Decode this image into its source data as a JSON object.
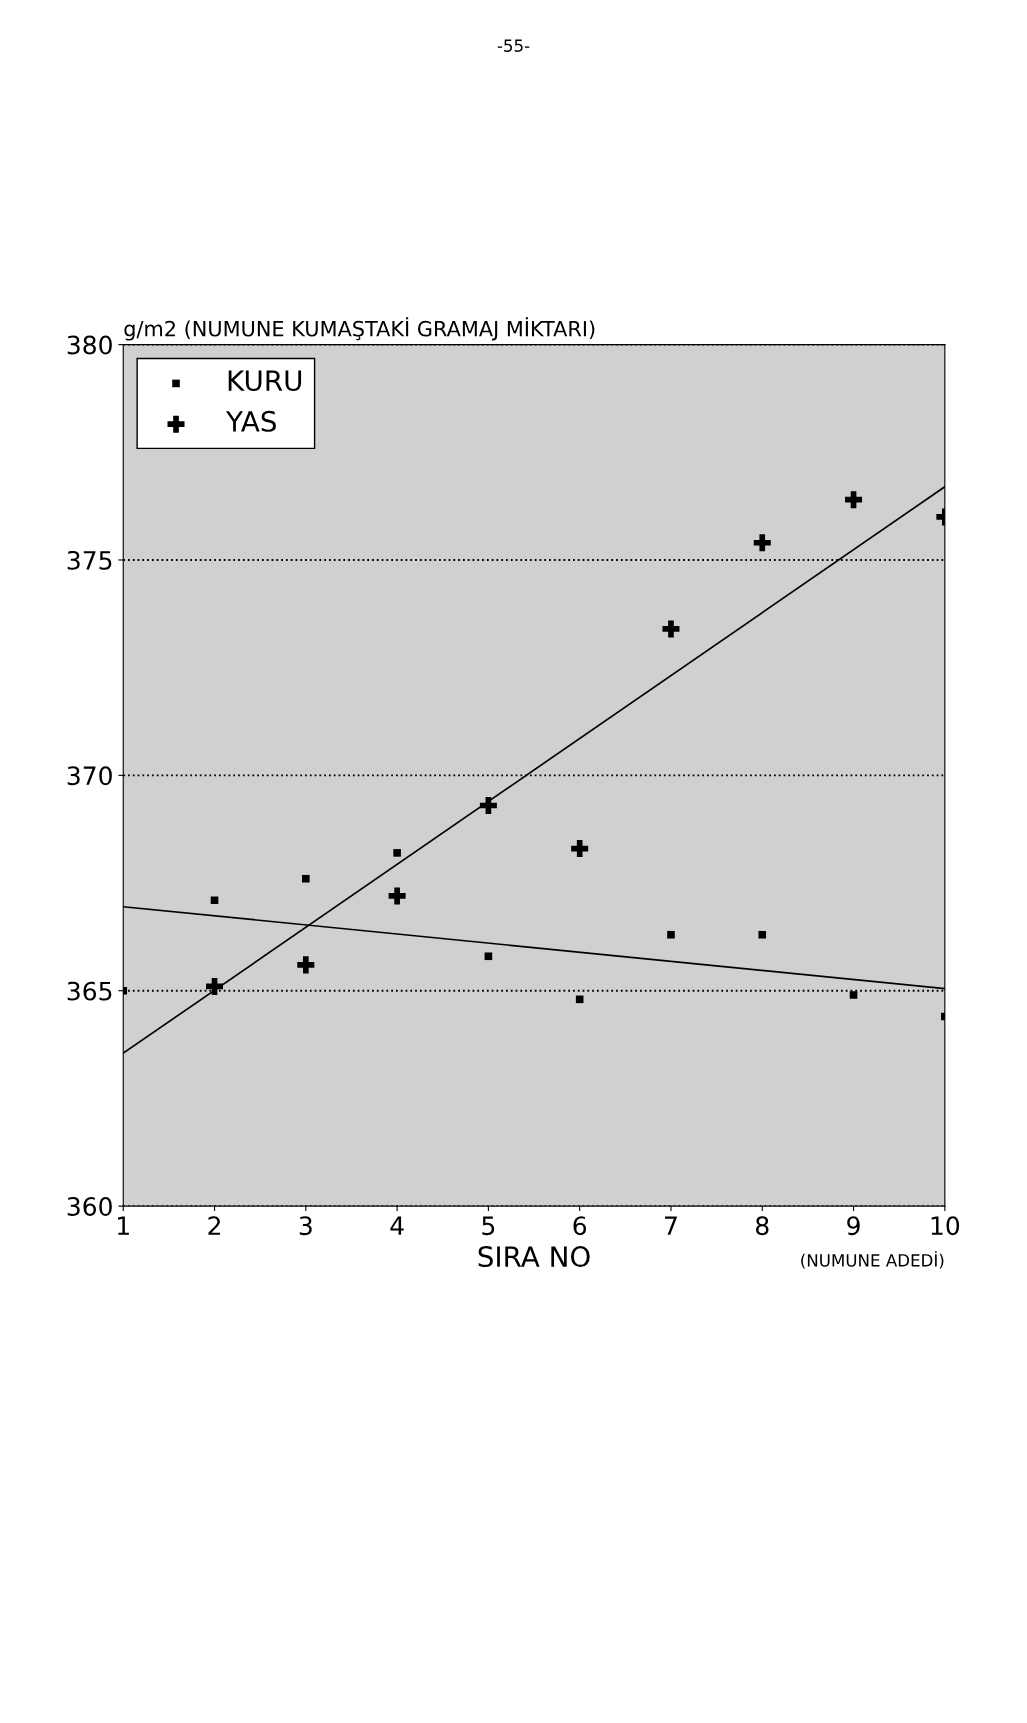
{
  "chart_data": {
    "type": "scatter",
    "ylabel": "g/m2 (NUMUNE KUMAŞTAKİ GRAMAJ MİKTARI)",
    "xlabel": "SIRA NO",
    "annotations": [
      "(NUMUNE ADEDİ)",
      "-55-"
    ],
    "series": [
      {
        "name": "KURU",
        "type": "scatter",
        "marker": "square",
        "color": "#000000",
        "x": [
          1,
          2,
          3,
          4,
          5,
          6,
          7,
          8,
          9,
          10
        ],
        "values": [
          365.0,
          367.1,
          367.6,
          368.2,
          365.8,
          364.8,
          366.3,
          366.3,
          364.9,
          364.4
        ]
      },
      {
        "name": "YAS",
        "type": "scatter",
        "marker": "cross",
        "color": "#000000",
        "x": [
          2,
          3,
          4,
          5,
          6,
          7,
          8,
          9,
          10
        ],
        "values": [
          365.1,
          365.6,
          367.2,
          369.3,
          368.3,
          373.4,
          375.4,
          376.4,
          376.0
        ]
      },
      {
        "type": "line",
        "marker": "none",
        "line_style": "solid",
        "color": "#000000",
        "x": [
          1,
          10
        ],
        "values": [
          366.95,
          365.05
        ]
      },
      {
        "type": "line",
        "marker": "none",
        "line_style": "solid",
        "color": "#000000",
        "x": [
          1,
          10
        ],
        "values": [
          363.55,
          376.7
        ]
      }
    ],
    "xlim": [
      1,
      10
    ],
    "xticks": [
      1,
      2,
      3,
      4,
      5,
      6,
      7,
      8,
      9,
      10
    ],
    "ylim": [
      360,
      380
    ],
    "yticks": [
      360,
      365,
      370,
      375,
      380
    ],
    "grid": "y",
    "legend": "top left"
  }
}
